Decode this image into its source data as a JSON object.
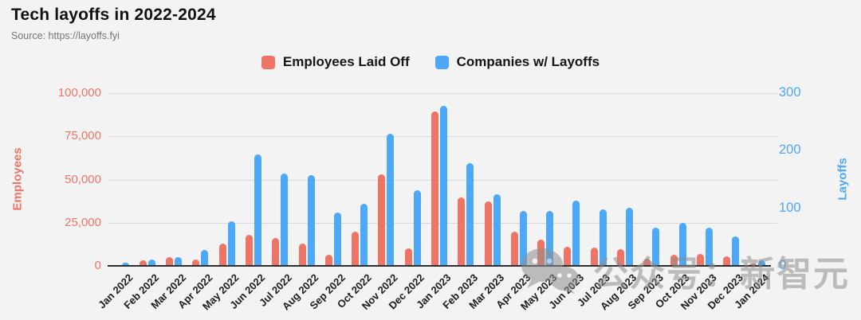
{
  "page": {
    "background": "#F2F3F2"
  },
  "header": {
    "title": "Tech layoffs in 2022-2024",
    "source": "Source: https://layoffs.fyi"
  },
  "legend": {
    "items": [
      {
        "label": "Employees Laid Off",
        "color": "#EE7566"
      },
      {
        "label": "Companies w/ Layoffs",
        "color": "#4DA8F7"
      }
    ]
  },
  "axes": {
    "left": {
      "title": "Employees",
      "color": "#EE7566",
      "max": 100000,
      "tick_labels": [
        "100,000",
        "75,000",
        "50,000",
        "25,000",
        "0"
      ]
    },
    "right": {
      "title": "Layoffs",
      "color": "#4DA8F7",
      "max": 300,
      "tick_labels": [
        "300",
        "200",
        "100",
        "0"
      ]
    }
  },
  "watermark": {
    "icon": "wechat-icon",
    "text": "公众号：新智元"
  },
  "chart_data": {
    "type": "bar",
    "title": "Tech layoffs in 2022-2024",
    "subtitle": "Source: https://layoffs.fyi",
    "categories": [
      "Jan 2022",
      "Feb 2022",
      "Mar 2022",
      "Apr 2022",
      "May 2022",
      "Jun 2022",
      "Jul 2022",
      "Aug 2022",
      "Sep 2022",
      "Oct 2022",
      "Nov 2022",
      "Dec 2022",
      "Jan 2023",
      "Feb 2023",
      "Mar 2023",
      "Apr 2023",
      "May 2023",
      "Jun 2023",
      "Jul 2023",
      "Aug 2023",
      "Sep 2023",
      "Oct 2023",
      "Nov 2023",
      "Dec 2023",
      "Jan 2024"
    ],
    "series": [
      {
        "name": "Employees Laid Off",
        "yaxis": "left",
        "color": "#EE7566",
        "values": [
          500,
          3400,
          5000,
          3800,
          12900,
          18000,
          16000,
          13000,
          6500,
          20000,
          53000,
          10000,
          89500,
          39500,
          37500,
          20000,
          15000,
          11000,
          10500,
          9600,
          4000,
          6500,
          7000,
          5500,
          1500
        ]
      },
      {
        "name": "Companies w/ Layoffs",
        "yaxis": "right",
        "color": "#4DA8F7",
        "values": [
          5,
          11,
          15,
          27,
          78,
          194,
          160,
          158,
          93,
          108,
          230,
          132,
          278,
          178,
          124,
          95,
          96,
          113,
          98,
          101,
          66,
          74,
          67,
          51,
          10
        ]
      }
    ],
    "ylabel_left": "Employees",
    "ylabel_right": "Layoffs",
    "ylim_left": [
      0,
      100000
    ],
    "ylim_right": [
      0,
      300
    ],
    "grid": true,
    "legend_position": "top",
    "x_tick_rotation": 45
  }
}
